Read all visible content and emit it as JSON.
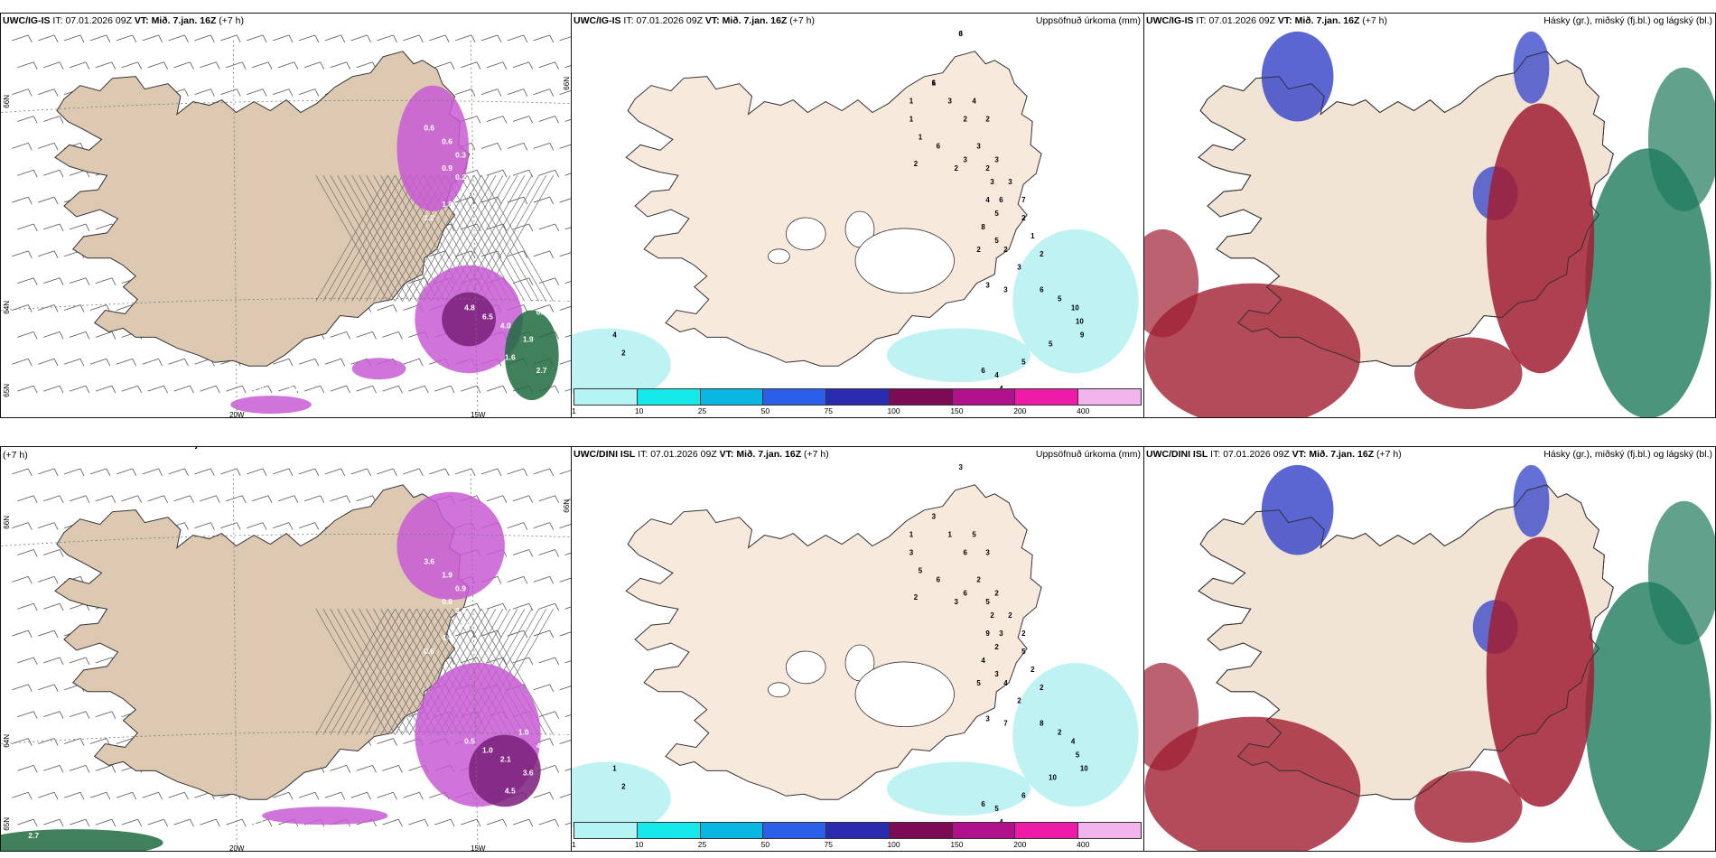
{
  "rows": [
    {
      "model": "UWC/IG-IS",
      "it_label": "IT:",
      "it_value": "07.01.2026 09Z",
      "vt_label": "VT:",
      "vt_value": "Mið. 7.jan. 16Z",
      "lead": "(+7 h)",
      "precip_values": [
        "3",
        "1",
        "1",
        "1",
        "1",
        "3",
        "4",
        "2",
        "2",
        "6",
        "3",
        "3",
        "3",
        "2",
        "2",
        "3",
        "3",
        "4",
        "6",
        "7",
        "5",
        "8",
        "5",
        "2",
        "2",
        "2",
        "2",
        "1",
        "2",
        "3",
        "3",
        "3",
        "6",
        "5",
        "10",
        "10",
        "9",
        "5",
        "5",
        "6",
        "4",
        "4",
        "4",
        "2",
        "6",
        "6"
      ],
      "wind_values": [
        "0.8",
        "0.6",
        "0.6",
        "0.3",
        "0.9",
        "0.2",
        "1.3",
        "1.8",
        "1.2",
        "4.8",
        "6.5",
        "4.0",
        "0.5",
        "0.4",
        "0.4",
        "1.9",
        "1.6",
        "2.7",
        "2.5",
        "1.0",
        "0.3",
        "0.8"
      ]
    },
    {
      "model": "UWC/DINI ISL",
      "it_label": "IT:",
      "it_value": "07.01.2026 09Z",
      "vt_label": "VT:",
      "vt_value": "Mið. 7.jan. 16Z",
      "lead": "(+7 h)",
      "precip_values": [
        "3",
        "3",
        "1",
        "3",
        "5",
        "1",
        "5",
        "6",
        "3",
        "6",
        "2",
        "6",
        "2",
        "3",
        "5",
        "2",
        "2",
        "9",
        "3",
        "2",
        "2",
        "4",
        "3",
        "5",
        "4",
        "2",
        "5",
        "2",
        "2",
        "2",
        "3",
        "7",
        "8",
        "2",
        "4",
        "5",
        "10",
        "10",
        "6",
        "6",
        "5",
        "4",
        "1",
        "2"
      ],
      "wind_values": [
        "2.7",
        "3.6",
        "1.9",
        "0.9",
        "0.8",
        "3.0",
        "1.9",
        "4.7",
        "0.6",
        "0.5",
        "1.0",
        "2.1",
        "1.0",
        "4.0",
        "5.6",
        "3.6",
        "4.5",
        "4.2",
        "1.9",
        "1.1"
      ]
    }
  ],
  "precip_title": "Uppsöfnuð úrkoma (mm)",
  "cloud_title": "Hásky (gr.), miðský (fj.bl.) og lágský (bl.)",
  "lon_labels": [
    "20W",
    "15W"
  ],
  "lat_labels": [
    "66N",
    "64N",
    "65N"
  ],
  "legend": {
    "ticks": [
      "1",
      "10",
      "25",
      "50",
      "75",
      "100",
      "150",
      "200",
      "400"
    ],
    "colors": [
      "#b4f4f4",
      "#16e9ea",
      "#0ab6e2",
      "#2c5fe8",
      "#2b2bb0",
      "#7d0a55",
      "#b1108c",
      "#ee1aa8",
      "#f2b4ec"
    ]
  },
  "colors": {
    "land": "#f4e6d6",
    "precip_light": "#bff3f3",
    "cloud_high": "#3240c8",
    "cloud_mid": "#a01e32",
    "cloud_low": "#1f7a5c",
    "wind_pink": "#c85bd4"
  }
}
